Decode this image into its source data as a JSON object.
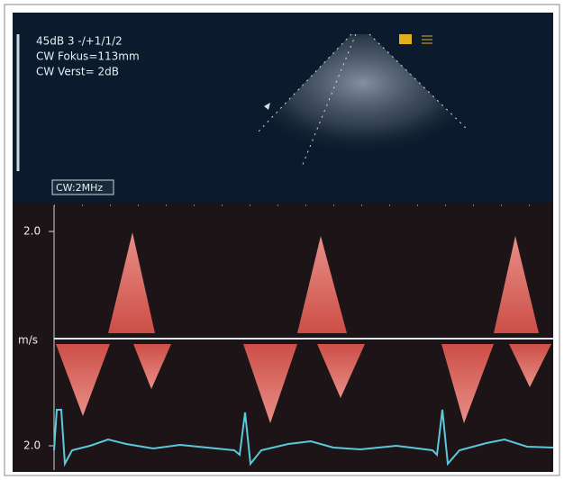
{
  "settings": {
    "lines": [
      "45dB  3 -/+1/1/2",
      "CW Fokus=113mm",
      "CW Verst=  2dB"
    ]
  },
  "mode_label": "CW:2MHz",
  "scale": {
    "top": "2.0",
    "unit": "m/s",
    "bottom": "2.0"
  }
}
